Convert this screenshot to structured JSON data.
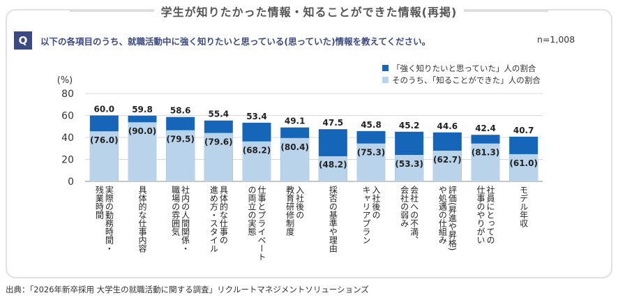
{
  "title": "学生が知りたかった情報・知ることができた情報(再掲)",
  "question": {
    "badge": "Q",
    "text": "以下の各項目のうち、就職活動中に強く知りたいと思っている(思っていた)情報を教えてください。",
    "n": "n=1,008"
  },
  "source": "出典：「2026年新卒採用  大学生の就職活動に関する調査」リクルートマネジメントソリューションズ",
  "chart_data": {
    "type": "bar",
    "ylabel": "(%)",
    "ylim": [
      0,
      80
    ],
    "yticks": [
      "0",
      "20",
      "40",
      "60",
      "80"
    ],
    "grid": true,
    "legend_position": "top-right",
    "colors": {
      "outer": "#1565b8",
      "inner": "#b8d3ea"
    },
    "series": [
      {
        "name": "「強く知りたいと思っていた」人の割合",
        "values": [
          60.0,
          59.8,
          58.6,
          55.4,
          53.4,
          49.1,
          47.5,
          45.8,
          45.2,
          44.6,
          42.4,
          40.7
        ],
        "labels": [
          "60.0",
          "59.8",
          "58.6",
          "55.4",
          "53.4",
          "49.1",
          "47.5",
          "45.8",
          "45.2",
          "44.6",
          "42.4",
          "40.7"
        ]
      },
      {
        "name": "そのうち、「知ることができた」人の割合",
        "values": [
          76.0,
          90.0,
          79.5,
          79.6,
          68.2,
          80.4,
          48.2,
          75.3,
          53.3,
          62.7,
          81.3,
          61.0
        ],
        "labels": [
          "(76.0)",
          "(90.0)",
          "(79.5)",
          "(79.6)",
          "(68.2)",
          "(80.4)",
          "(48.2)",
          "(75.3)",
          "(53.3)",
          "(62.7)",
          "(81.3)",
          "(61.0)"
        ]
      }
    ],
    "categories": [
      [
        "実際の勤務時間・",
        "残業時間"
      ],
      [
        "具体的な仕事内容"
      ],
      [
        "社内の人間関係・",
        "職場の雰囲気"
      ],
      [
        "具体的な仕事の",
        "進め方・スタイル"
      ],
      [
        "仕事とプライベート",
        "の両立の実態"
      ],
      [
        "入社後の",
        "教育研修制度"
      ],
      [
        "採否の基準や理由"
      ],
      [
        "入社後の",
        "キャリアプラン"
      ],
      [
        "会社への不満、",
        "会社の弱み"
      ],
      [
        "評価(昇進や昇格)",
        "や処遇の仕組み"
      ],
      [
        "社員にとっての",
        "仕事のやりがい"
      ],
      [
        "モデル年収"
      ]
    ]
  }
}
